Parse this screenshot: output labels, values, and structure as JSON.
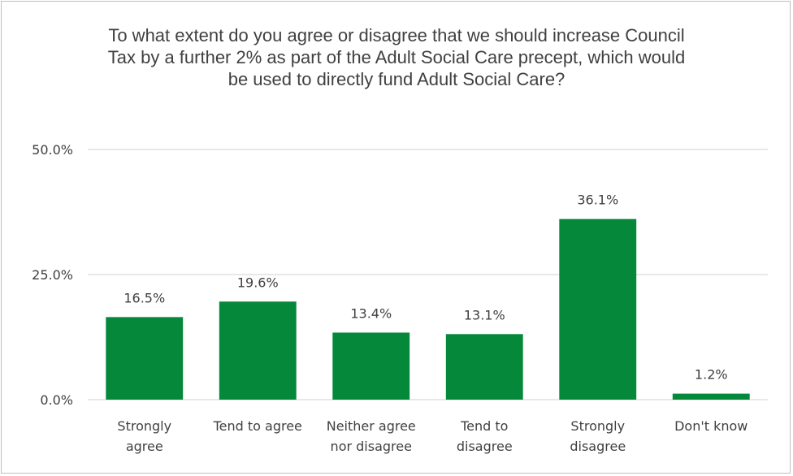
{
  "chart_data": {
    "type": "bar",
    "title": "To what extent do you agree or disagree that we should increase Council Tax by a further 2% as part of the Adult Social Care precept, which would be used to directly fund Adult Social Care?",
    "categories": [
      [
        "Strongly",
        "agree"
      ],
      [
        "Tend to agree"
      ],
      [
        "Neither agree",
        "nor disagree"
      ],
      [
        "Tend to",
        "disagree"
      ],
      [
        "Strongly",
        "disagree"
      ],
      [
        "Don't know"
      ]
    ],
    "values": [
      16.5,
      19.6,
      13.4,
      13.1,
      36.1,
      1.2
    ],
    "data_labels": [
      "16.5%",
      "19.6%",
      "13.4%",
      "13.1%",
      "36.1%",
      "1.2%"
    ],
    "y_ticks": [
      0,
      25,
      50
    ],
    "y_tick_labels": [
      "0.0%",
      "25.0%",
      "50.0%"
    ],
    "ylim": [
      0,
      50
    ],
    "grid": true,
    "legend": "none",
    "bar_color": "#05883a",
    "grid_color": "#d9d9d9"
  }
}
